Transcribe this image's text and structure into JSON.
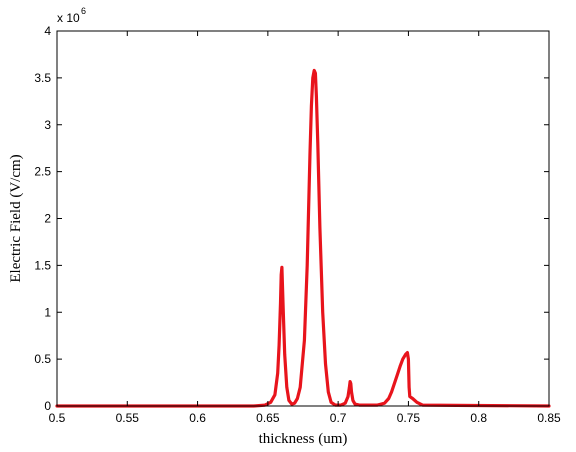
{
  "chart_data": {
    "type": "line",
    "title": "",
    "xlabel": "thickness (um)",
    "ylabel": "Electric Field (V/cm)",
    "y_exponent_base": "x 10",
    "y_exponent_power": "6",
    "xlim": [
      0.5,
      0.85
    ],
    "ylim": [
      0,
      4
    ],
    "x_ticks": [
      0.5,
      0.55,
      0.6,
      0.65,
      0.7,
      0.75,
      0.8,
      0.85
    ],
    "x_tick_labels": [
      "0.5",
      "0.55",
      "0.6",
      "0.65",
      "0.7",
      "0.75",
      "0.8",
      "0.85"
    ],
    "y_ticks": [
      0,
      0.5,
      1,
      1.5,
      2,
      2.5,
      3,
      3.5,
      4
    ],
    "y_tick_labels": [
      "0",
      "0.5",
      "1",
      "1.5",
      "2",
      "2.5",
      "3",
      "3.5",
      "4"
    ],
    "grid": false,
    "series_color": "#e8141c",
    "series": [
      {
        "x": [
          0.5,
          0.64,
          0.648,
          0.652,
          0.655,
          0.657,
          0.658,
          0.659,
          0.6595,
          0.66,
          0.661,
          0.662,
          0.6635,
          0.665,
          0.667,
          0.669,
          0.671,
          0.673,
          0.676,
          0.678,
          0.68,
          0.681,
          0.682,
          0.683,
          0.6838,
          0.6845,
          0.6855,
          0.687,
          0.689,
          0.691,
          0.693,
          0.695,
          0.698,
          0.702,
          0.705,
          0.707,
          0.708,
          0.7085,
          0.709,
          0.7095,
          0.7105,
          0.712,
          0.715,
          0.72,
          0.728,
          0.733,
          0.736,
          0.738,
          0.74,
          0.742,
          0.744,
          0.746,
          0.748,
          0.7493,
          0.75,
          0.7505,
          0.751,
          0.753,
          0.756,
          0.76,
          0.85
        ],
        "y": [
          0,
          0,
          0.01,
          0.04,
          0.12,
          0.35,
          0.65,
          1.1,
          1.4,
          1.48,
          1.0,
          0.55,
          0.2,
          0.06,
          0.02,
          0.03,
          0.08,
          0.2,
          0.7,
          1.5,
          2.7,
          3.2,
          3.5,
          3.58,
          3.55,
          3.3,
          2.8,
          1.9,
          1.0,
          0.45,
          0.15,
          0.04,
          0.01,
          0.01,
          0.03,
          0.1,
          0.2,
          0.26,
          0.24,
          0.15,
          0.06,
          0.02,
          0.01,
          0.01,
          0.01,
          0.03,
          0.08,
          0.15,
          0.24,
          0.33,
          0.42,
          0.5,
          0.55,
          0.57,
          0.5,
          0.2,
          0.1,
          0.08,
          0.04,
          0.01,
          0
        ]
      }
    ]
  }
}
